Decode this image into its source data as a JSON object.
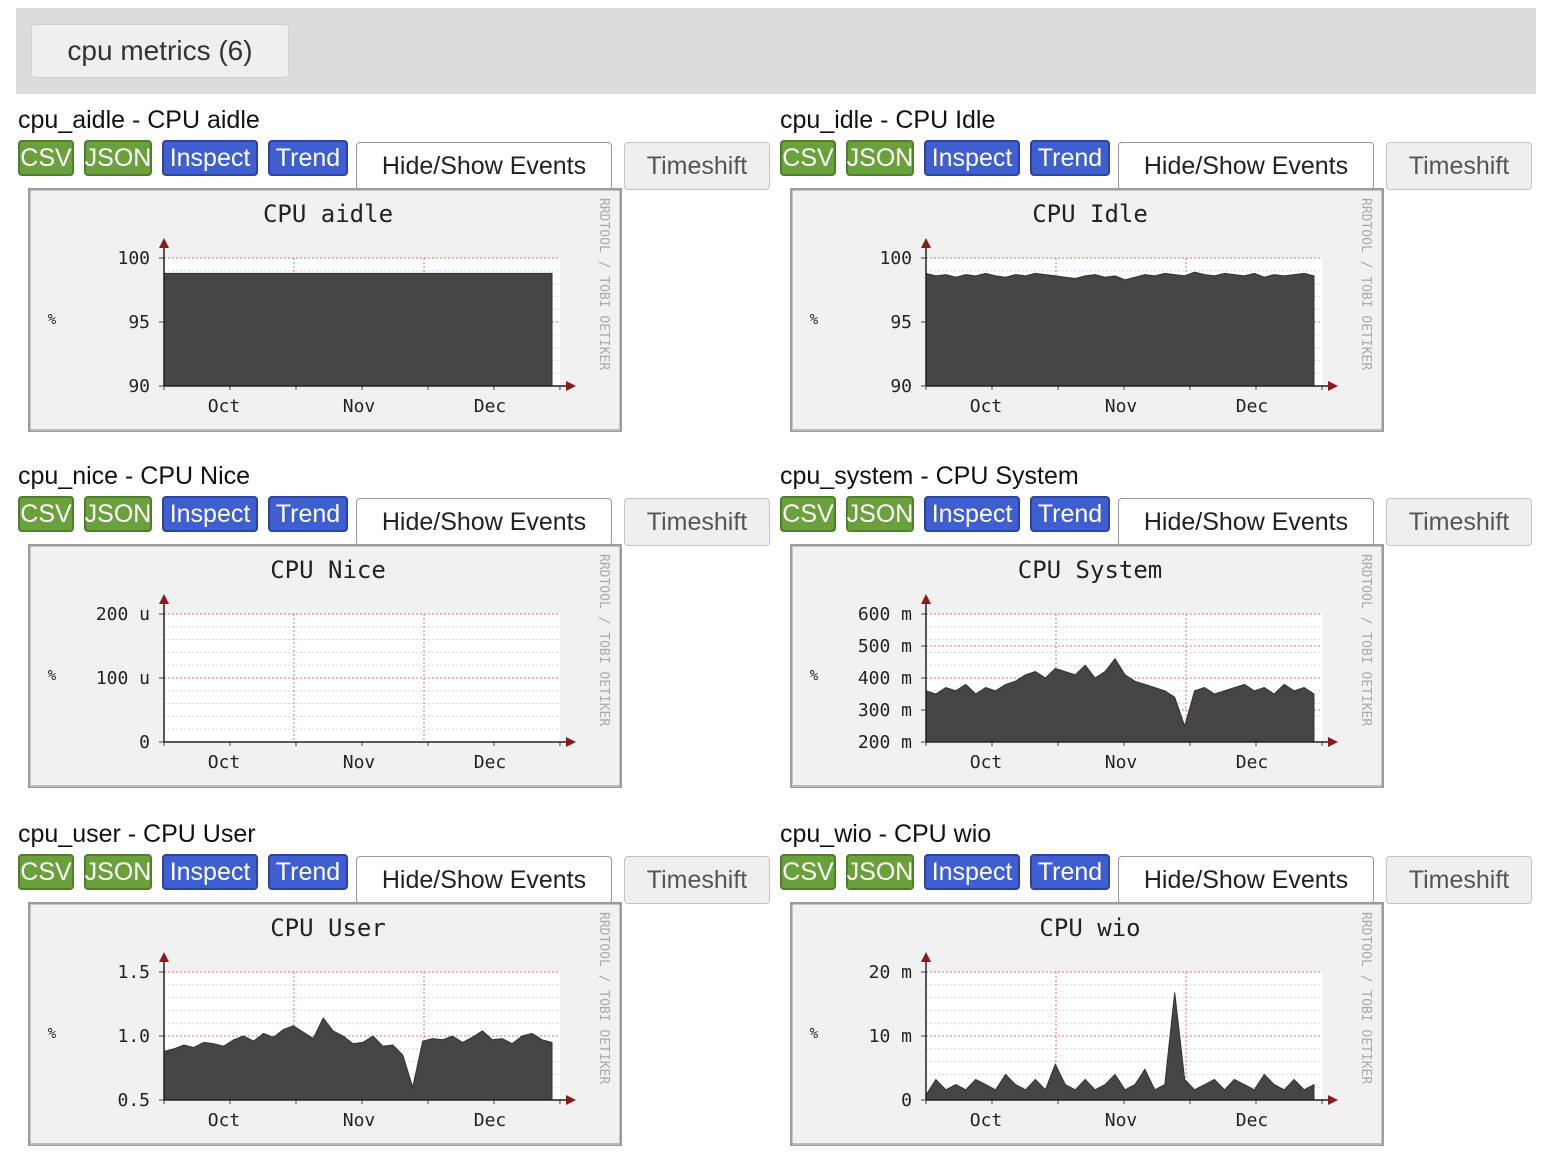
{
  "group_tab": {
    "label": "cpu metrics (6)"
  },
  "buttons": {
    "csv": "CSV",
    "json": "JSON",
    "inspect": "Inspect",
    "trend": "Trend",
    "hide_show": "Hide/Show Events",
    "timeshift": "Timeshift"
  },
  "watermark_side": "RRDTOOL / TOBI OETIKER",
  "colors": {
    "csv_green": "#6aa13c",
    "inspect_blue": "#3f5fd1",
    "area_fill": "#454545",
    "header_bg": "#dcdcde"
  },
  "metrics": [
    {
      "heading": "cpu_aidle - CPU aidle",
      "chart_data": {
        "type": "area",
        "title": "CPU aidle",
        "ylabel": "%",
        "ylim": [
          90,
          100
        ],
        "yticks": [
          "100",
          "95",
          "90"
        ],
        "xticks": [
          "Oct",
          "Nov",
          "Dec"
        ],
        "series": [
          {
            "name": "cpu_aidle",
            "values": [
              98.8,
              98.8,
              98.8,
              98.8,
              98.8,
              98.8,
              98.8,
              98.8,
              98.8,
              98.8,
              98.8,
              98.8,
              98.8,
              98.8,
              98.8,
              98.8,
              98.8,
              98.8,
              98.8,
              98.8,
              98.8,
              98.8,
              98.8,
              98.8,
              98.8,
              98.8,
              98.8,
              98.8,
              98.8,
              98.8,
              98.8,
              98.8,
              98.8,
              98.8,
              98.8,
              98.8,
              98.8,
              98.8,
              98.8,
              98.8
            ]
          }
        ]
      }
    },
    {
      "heading": "cpu_idle - CPU Idle",
      "chart_data": {
        "type": "area",
        "title": "CPU Idle",
        "ylabel": "%",
        "ylim": [
          90,
          100
        ],
        "yticks": [
          "100",
          "95",
          "90"
        ],
        "xticks": [
          "Oct",
          "Nov",
          "Dec"
        ],
        "series": [
          {
            "name": "cpu_idle",
            "values": [
              98.8,
              98.6,
              98.7,
              98.5,
              98.7,
              98.6,
              98.8,
              98.6,
              98.5,
              98.7,
              98.6,
              98.8,
              98.7,
              98.6,
              98.5,
              98.4,
              98.6,
              98.7,
              98.5,
              98.6,
              98.3,
              98.5,
              98.7,
              98.6,
              98.8,
              98.7,
              98.6,
              98.9,
              98.7,
              98.6,
              98.8,
              98.7,
              98.6,
              98.8,
              98.5,
              98.7,
              98.6,
              98.7,
              98.8,
              98.6
            ]
          }
        ]
      }
    },
    {
      "heading": "cpu_nice - CPU Nice",
      "chart_data": {
        "type": "area",
        "title": "CPU Nice",
        "ylabel": "%",
        "ylim": [
          0,
          0.00025
        ],
        "yticks": [
          "200 u",
          "100 u",
          "0"
        ],
        "xticks": [
          "Oct",
          "Nov",
          "Dec"
        ],
        "series": [
          {
            "name": "cpu_nice",
            "values": [
              0,
              0,
              0,
              0,
              0,
              0,
              0,
              0,
              0,
              0,
              0,
              0,
              0,
              0,
              0,
              0,
              0,
              0,
              0,
              0,
              0,
              0,
              0,
              0,
              0,
              0,
              0,
              0,
              0,
              0,
              0,
              0,
              0,
              0,
              0,
              0,
              0,
              0,
              0,
              0
            ]
          }
        ]
      }
    },
    {
      "heading": "cpu_system - CPU System",
      "chart_data": {
        "type": "area",
        "title": "CPU System",
        "ylabel": "%",
        "ylim": [
          0.2,
          0.6
        ],
        "yticks": [
          "600 m",
          "500 m",
          "400 m",
          "300 m",
          "200 m"
        ],
        "xticks": [
          "Oct",
          "Nov",
          "Dec"
        ],
        "series": [
          {
            "name": "cpu_system",
            "values": [
              0.36,
              0.35,
              0.37,
              0.36,
              0.38,
              0.35,
              0.37,
              0.36,
              0.38,
              0.39,
              0.41,
              0.42,
              0.4,
              0.43,
              0.42,
              0.41,
              0.44,
              0.4,
              0.42,
              0.46,
              0.41,
              0.39,
              0.38,
              0.37,
              0.36,
              0.34,
              0.25,
              0.36,
              0.37,
              0.35,
              0.36,
              0.37,
              0.38,
              0.36,
              0.37,
              0.35,
              0.38,
              0.36,
              0.37,
              0.35
            ]
          }
        ]
      }
    },
    {
      "heading": "cpu_user - CPU User",
      "chart_data": {
        "type": "area",
        "title": "CPU User",
        "ylabel": "%",
        "ylim": [
          0.5,
          1.5
        ],
        "yticks": [
          "1.5",
          "1.0",
          "0.5"
        ],
        "xticks": [
          "Oct",
          "Nov",
          "Dec"
        ],
        "series": [
          {
            "name": "cpu_user",
            "values": [
              0.88,
              0.9,
              0.93,
              0.91,
              0.95,
              0.94,
              0.92,
              0.97,
              1.0,
              0.96,
              1.02,
              0.99,
              1.05,
              1.08,
              1.03,
              0.98,
              1.14,
              1.04,
              1.0,
              0.94,
              0.95,
              1.0,
              0.92,
              0.93,
              0.85,
              0.6,
              0.96,
              0.98,
              0.97,
              1.0,
              0.95,
              0.99,
              1.04,
              0.97,
              0.98,
              0.94,
              1.0,
              1.02,
              0.97,
              0.95
            ]
          }
        ]
      }
    },
    {
      "heading": "cpu_wio - CPU wio",
      "chart_data": {
        "type": "area",
        "title": "CPU wio",
        "ylabel": "%",
        "ylim": [
          0,
          0.025
        ],
        "yticks": [
          "20 m",
          "10 m",
          "0"
        ],
        "xticks": [
          "Oct",
          "Nov",
          "Dec"
        ],
        "series": [
          {
            "name": "cpu_wio",
            "values": [
              0.001,
              0.004,
              0.002,
              0.003,
              0.002,
              0.004,
              0.003,
              0.002,
              0.005,
              0.003,
              0.002,
              0.004,
              0.002,
              0.007,
              0.003,
              0.002,
              0.004,
              0.002,
              0.003,
              0.005,
              0.002,
              0.003,
              0.006,
              0.002,
              0.003,
              0.021,
              0.004,
              0.002,
              0.003,
              0.004,
              0.002,
              0.004,
              0.003,
              0.002,
              0.005,
              0.003,
              0.002,
              0.004,
              0.002,
              0.003
            ]
          }
        ]
      }
    }
  ]
}
